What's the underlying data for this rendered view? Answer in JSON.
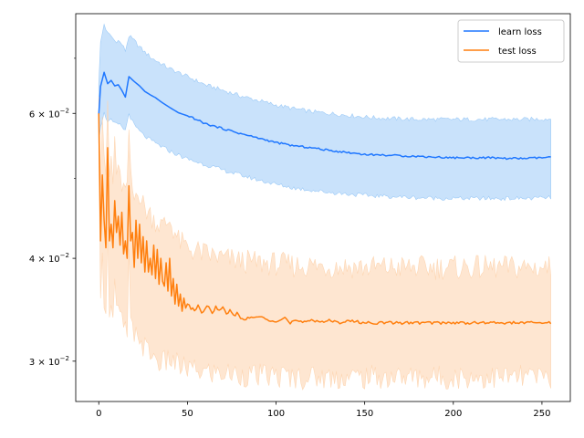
{
  "chart_data": {
    "type": "line",
    "title": "",
    "xlabel": "",
    "ylabel": "",
    "y_scale": "log",
    "xlim": [
      -13,
      266
    ],
    "ylim": [
      0.0268,
      0.0793
    ],
    "grid": false,
    "legend_position": "top-right",
    "x_ticks": [
      0,
      50,
      100,
      150,
      200,
      250
    ],
    "x_tick_labels": [
      "0",
      "50",
      "100",
      "150",
      "200",
      "250"
    ],
    "y_ticks": [
      0.03,
      0.04,
      0.06
    ],
    "y_tick_labels": [
      "3 × 10",
      "4 × 10",
      "6 × 10"
    ],
    "y_tick_exponent": "−2",
    "y_minor_ticks": [
      0.05,
      0.07
    ],
    "x_range": [
      0,
      255
    ],
    "series": [
      {
        "name": "learn loss",
        "color": "#1f77ff",
        "band_color": "#9ccaf7",
        "mean": [
          [
            0,
            0.0598
          ],
          [
            1,
            0.0647
          ],
          [
            3,
            0.0673
          ],
          [
            5,
            0.0652
          ],
          [
            7,
            0.0658
          ],
          [
            9,
            0.0648
          ],
          [
            11,
            0.065
          ],
          [
            13,
            0.064
          ],
          [
            15,
            0.0628
          ],
          [
            17,
            0.0665
          ],
          [
            20,
            0.0656
          ],
          [
            23,
            0.0648
          ],
          [
            26,
            0.0638
          ],
          [
            29,
            0.0632
          ],
          [
            32,
            0.0627
          ],
          [
            35,
            0.062
          ],
          [
            40,
            0.061
          ],
          [
            45,
            0.0601
          ],
          [
            50,
            0.0596
          ],
          [
            55,
            0.059
          ],
          [
            60,
            0.0583
          ],
          [
            70,
            0.0575
          ],
          [
            80,
            0.0567
          ],
          [
            90,
            0.056
          ],
          [
            100,
            0.0553
          ],
          [
            110,
            0.0548
          ],
          [
            120,
            0.0545
          ],
          [
            130,
            0.0541
          ],
          [
            140,
            0.0538
          ],
          [
            150,
            0.0535
          ],
          [
            160,
            0.0534
          ],
          [
            170,
            0.0533
          ],
          [
            180,
            0.0532
          ],
          [
            190,
            0.0531
          ],
          [
            200,
            0.053
          ],
          [
            210,
            0.053
          ],
          [
            220,
            0.053
          ],
          [
            230,
            0.0529
          ],
          [
            240,
            0.0529
          ],
          [
            250,
            0.053
          ],
          [
            255,
            0.0531
          ]
        ],
        "upper": [
          [
            0,
            0.0655
          ],
          [
            1,
            0.073
          ],
          [
            3,
            0.077
          ],
          [
            5,
            0.075
          ],
          [
            7,
            0.0745
          ],
          [
            9,
            0.0735
          ],
          [
            11,
            0.0735
          ],
          [
            13,
            0.0728
          ],
          [
            15,
            0.0715
          ],
          [
            17,
            0.0745
          ],
          [
            20,
            0.0735
          ],
          [
            25,
            0.0715
          ],
          [
            30,
            0.07
          ],
          [
            40,
            0.068
          ],
          [
            50,
            0.0665
          ],
          [
            60,
            0.065
          ],
          [
            70,
            0.064
          ],
          [
            80,
            0.063
          ],
          [
            90,
            0.0622
          ],
          [
            100,
            0.0614
          ],
          [
            110,
            0.0608
          ],
          [
            120,
            0.0603
          ],
          [
            130,
            0.06
          ],
          [
            140,
            0.0597
          ],
          [
            150,
            0.0594
          ],
          [
            160,
            0.0592
          ],
          [
            170,
            0.0591
          ],
          [
            180,
            0.059
          ],
          [
            200,
            0.059
          ],
          [
            220,
            0.059
          ],
          [
            240,
            0.059
          ],
          [
            255,
            0.0591
          ]
        ],
        "lower": [
          [
            0,
            0.0555
          ],
          [
            1,
            0.058
          ],
          [
            3,
            0.06
          ],
          [
            5,
            0.0588
          ],
          [
            7,
            0.0588
          ],
          [
            9,
            0.0582
          ],
          [
            11,
            0.0582
          ],
          [
            13,
            0.0578
          ],
          [
            15,
            0.0572
          ],
          [
            17,
            0.06
          ],
          [
            20,
            0.058
          ],
          [
            25,
            0.0565
          ],
          [
            30,
            0.0555
          ],
          [
            40,
            0.054
          ],
          [
            50,
            0.0528
          ],
          [
            60,
            0.052
          ],
          [
            70,
            0.0512
          ],
          [
            80,
            0.0505
          ],
          [
            90,
            0.0498
          ],
          [
            100,
            0.0492
          ],
          [
            110,
            0.0487
          ],
          [
            120,
            0.0484
          ],
          [
            130,
            0.0481
          ],
          [
            140,
            0.0479
          ],
          [
            150,
            0.0477
          ],
          [
            160,
            0.0476
          ],
          [
            170,
            0.0475
          ],
          [
            180,
            0.0474
          ],
          [
            200,
            0.0473
          ],
          [
            220,
            0.0473
          ],
          [
            240,
            0.0473
          ],
          [
            255,
            0.0474
          ]
        ]
      },
      {
        "name": "test loss",
        "color": "#ff7f0e",
        "band_color": "#fdd6b3",
        "mean": [
          [
            0,
            0.06
          ],
          [
            1,
            0.042
          ],
          [
            2,
            0.0505
          ],
          [
            3,
            0.0445
          ],
          [
            4,
            0.0412
          ],
          [
            5,
            0.0545
          ],
          [
            6,
            0.042
          ],
          [
            7,
            0.044
          ],
          [
            8,
            0.0412
          ],
          [
            9,
            0.047
          ],
          [
            10,
            0.043
          ],
          [
            11,
            0.045
          ],
          [
            12,
            0.0415
          ],
          [
            13,
            0.0455
          ],
          [
            14,
            0.0405
          ],
          [
            15,
            0.042
          ],
          [
            16,
            0.04
          ],
          [
            17,
            0.049
          ],
          [
            18,
            0.042
          ],
          [
            19,
            0.043
          ],
          [
            20,
            0.039
          ],
          [
            21,
            0.0445
          ],
          [
            22,
            0.04
          ],
          [
            23,
            0.044
          ],
          [
            24,
            0.0395
          ],
          [
            25,
            0.0425
          ],
          [
            26,
            0.0385
          ],
          [
            27,
            0.042
          ],
          [
            28,
            0.0385
          ],
          [
            29,
            0.04
          ],
          [
            30,
            0.0382
          ],
          [
            31,
            0.0415
          ],
          [
            32,
            0.0378
          ],
          [
            33,
            0.041
          ],
          [
            34,
            0.0372
          ],
          [
            35,
            0.04
          ],
          [
            36,
            0.0375
          ],
          [
            37,
            0.037
          ],
          [
            38,
            0.0395
          ],
          [
            39,
            0.0365
          ],
          [
            40,
            0.04
          ],
          [
            41,
            0.036
          ],
          [
            42,
            0.0378
          ],
          [
            43,
            0.0352
          ],
          [
            44,
            0.0372
          ],
          [
            45,
            0.035
          ],
          [
            46,
            0.0362
          ],
          [
            47,
            0.0345
          ],
          [
            48,
            0.0358
          ],
          [
            49,
            0.0348
          ],
          [
            50,
            0.0352
          ],
          [
            52,
            0.0348
          ],
          [
            54,
            0.0346
          ],
          [
            56,
            0.035
          ],
          [
            58,
            0.0343
          ],
          [
            60,
            0.0348
          ],
          [
            62,
            0.035
          ],
          [
            64,
            0.0342
          ],
          [
            66,
            0.035
          ],
          [
            68,
            0.0345
          ],
          [
            70,
            0.0348
          ],
          [
            72,
            0.0342
          ],
          [
            74,
            0.0346
          ],
          [
            76,
            0.034
          ],
          [
            78,
            0.0344
          ],
          [
            80,
            0.0338
          ],
          [
            85,
            0.0338
          ],
          [
            90,
            0.034
          ],
          [
            95,
            0.0337
          ],
          [
            100,
            0.0336
          ],
          [
            105,
            0.0339
          ],
          [
            108,
            0.0333
          ],
          [
            110,
            0.0336
          ],
          [
            115,
            0.0334
          ],
          [
            120,
            0.0337
          ],
          [
            125,
            0.0335
          ],
          [
            130,
            0.0336
          ],
          [
            135,
            0.0334
          ],
          [
            140,
            0.0336
          ],
          [
            150,
            0.0334
          ],
          [
            160,
            0.0334
          ],
          [
            170,
            0.0334
          ],
          [
            180,
            0.0334
          ],
          [
            190,
            0.0334
          ],
          [
            200,
            0.0334
          ],
          [
            210,
            0.0334
          ],
          [
            220,
            0.0334
          ],
          [
            230,
            0.0334
          ],
          [
            240,
            0.0334
          ],
          [
            250,
            0.0334
          ],
          [
            255,
            0.0334
          ]
        ],
        "upper": [
          [
            0,
            0.065
          ],
          [
            1,
            0.05
          ],
          [
            2,
            0.06
          ],
          [
            3,
            0.054
          ],
          [
            4,
            0.049
          ],
          [
            5,
            0.062
          ],
          [
            6,
            0.05
          ],
          [
            7,
            0.053
          ],
          [
            8,
            0.049
          ],
          [
            9,
            0.056
          ],
          [
            10,
            0.051
          ],
          [
            12,
            0.05
          ],
          [
            14,
            0.0485
          ],
          [
            16,
            0.048
          ],
          [
            17,
            0.0575
          ],
          [
            18,
            0.05
          ],
          [
            20,
            0.047
          ],
          [
            22,
            0.049
          ],
          [
            24,
            0.047
          ],
          [
            26,
            0.046
          ],
          [
            28,
            0.0455
          ],
          [
            30,
            0.045
          ],
          [
            32,
            0.0445
          ],
          [
            34,
            0.044
          ],
          [
            36,
            0.0438
          ],
          [
            38,
            0.044
          ],
          [
            40,
            0.0445
          ],
          [
            45,
            0.042
          ],
          [
            50,
            0.0412
          ],
          [
            55,
            0.0408
          ],
          [
            60,
            0.0405
          ],
          [
            70,
            0.04
          ],
          [
            80,
            0.0397
          ],
          [
            90,
            0.0395
          ],
          [
            100,
            0.0394
          ],
          [
            110,
            0.0392
          ],
          [
            120,
            0.0392
          ],
          [
            130,
            0.0391
          ],
          [
            140,
            0.0391
          ],
          [
            150,
            0.039
          ],
          [
            170,
            0.039
          ],
          [
            190,
            0.039
          ],
          [
            210,
            0.039
          ],
          [
            230,
            0.039
          ],
          [
            250,
            0.039
          ],
          [
            255,
            0.039
          ]
        ],
        "lower": [
          [
            0,
            0.052
          ],
          [
            1,
            0.035
          ],
          [
            2,
            0.042
          ],
          [
            3,
            0.036
          ],
          [
            4,
            0.0335
          ],
          [
            5,
            0.045
          ],
          [
            6,
            0.0345
          ],
          [
            7,
            0.036
          ],
          [
            8,
            0.0335
          ],
          [
            9,
            0.038
          ],
          [
            10,
            0.0345
          ],
          [
            12,
            0.034
          ],
          [
            14,
            0.033
          ],
          [
            16,
            0.0325
          ],
          [
            17,
            0.04
          ],
          [
            18,
            0.0335
          ],
          [
            20,
            0.0315
          ],
          [
            22,
            0.0328
          ],
          [
            24,
            0.0315
          ],
          [
            26,
            0.0312
          ],
          [
            28,
            0.0308
          ],
          [
            30,
            0.0306
          ],
          [
            32,
            0.0302
          ],
          [
            34,
            0.03
          ],
          [
            36,
            0.0298
          ],
          [
            38,
            0.03
          ],
          [
            40,
            0.0302
          ],
          [
            45,
            0.0296
          ],
          [
            50,
            0.0294
          ],
          [
            55,
            0.0292
          ],
          [
            60,
            0.0291
          ],
          [
            70,
            0.029
          ],
          [
            80,
            0.0289
          ],
          [
            90,
            0.0288
          ],
          [
            100,
            0.0288
          ],
          [
            110,
            0.0287
          ],
          [
            120,
            0.0287
          ],
          [
            130,
            0.0287
          ],
          [
            140,
            0.0287
          ],
          [
            150,
            0.0287
          ],
          [
            170,
            0.0287
          ],
          [
            190,
            0.0287
          ],
          [
            210,
            0.0287
          ],
          [
            230,
            0.0287
          ],
          [
            250,
            0.0287
          ],
          [
            255,
            0.0287
          ]
        ]
      }
    ]
  }
}
